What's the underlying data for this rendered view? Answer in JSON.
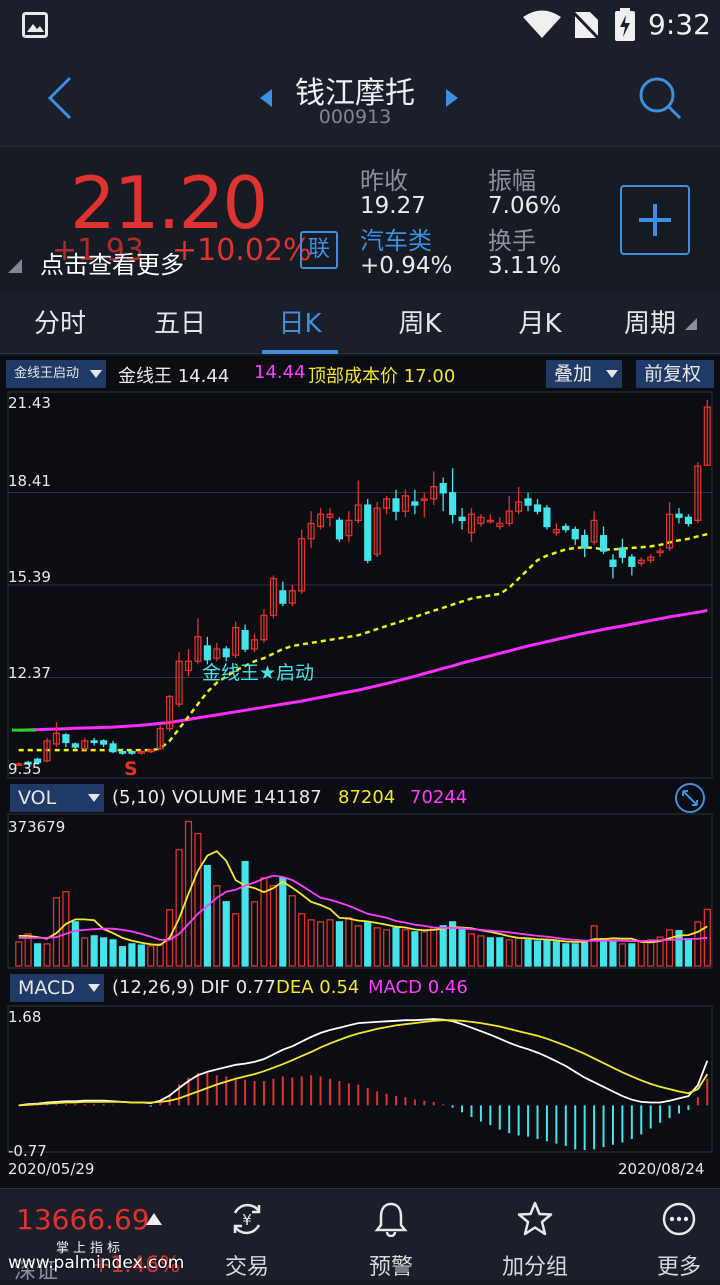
{
  "status": {
    "time": "9:32"
  },
  "header": {
    "title": "钱江摩托",
    "code": "000913"
  },
  "quote": {
    "price": "21.20",
    "change": "+1.93",
    "change_pct": "+10.02%",
    "link_badge": "联",
    "hint": "点击查看更多",
    "prev_close_label": "昨收",
    "prev_close": "19.27",
    "amplitude_label": "振幅",
    "amplitude": "7.06%",
    "sector_label": "汽车类",
    "sector_change": "+0.94%",
    "turnover_label": "换手",
    "turnover": "3.11%",
    "colors": {
      "up": "#e0322e",
      "down": "#43e4ea",
      "accent": "#3d8fe0"
    }
  },
  "tabs": [
    "分时",
    "五日",
    "日K",
    "周K",
    "月K",
    "周期"
  ],
  "active_tab": "日K",
  "indicator_bar": {
    "dropdown": "金线王启动",
    "name": "金线王",
    "value1": "14.44",
    "value2": "14.44",
    "top_cost_label": "顶部成本价",
    "top_cost": "17.00",
    "overlay": "叠加",
    "adjust": "前复权"
  },
  "kline": {
    "y_labels": [
      "21.43",
      "18.41",
      "15.39",
      "12.37",
      "9.35"
    ],
    "annotation": "金线王★启动",
    "signal": "S"
  },
  "vol_bar": {
    "dropdown": "VOL",
    "params": "(5,10)",
    "name": "VOLUME",
    "v": "141187",
    "ma5": "87204",
    "ma10": "70244",
    "max_label": "373679"
  },
  "macd_bar": {
    "dropdown": "MACD",
    "params": "(12,26,9)",
    "dif_label": "DIF",
    "dif": "0.77",
    "dea_label": "DEA",
    "dea": "0.54",
    "macd_label": "MACD",
    "macd": "0.46",
    "max_label": "1.68",
    "min_label": "-0.77"
  },
  "dates": {
    "start": "2020/05/29",
    "end": "2020/08/24"
  },
  "bottom_nav": {
    "index_value": "13666.69",
    "index_sub": "掌上指标",
    "index_name": "深证",
    "index_change": "+1.46%",
    "items": [
      "交易",
      "预警",
      "加分组",
      "更多"
    ]
  },
  "watermark": "www.palmindex.com",
  "chart_data": {
    "type": "candlestick",
    "x_range": [
      "2020/05/29",
      "2020/08/24"
    ],
    "ylim": [
      9.35,
      21.43
    ],
    "candles": [
      [
        9.55,
        9.55,
        9.5,
        9.6
      ],
      [
        9.6,
        9.55,
        9.5,
        9.65
      ],
      [
        9.7,
        9.6,
        9.55,
        9.75
      ],
      [
        9.65,
        10.3,
        9.6,
        10.4
      ],
      [
        10.2,
        10.55,
        10.1,
        10.9
      ],
      [
        10.5,
        10.25,
        10.1,
        10.55
      ],
      [
        10.2,
        10.1,
        10.0,
        10.25
      ],
      [
        10.05,
        10.3,
        10.0,
        10.4
      ],
      [
        10.3,
        10.25,
        10.15,
        10.4
      ],
      [
        10.3,
        10.2,
        10.1,
        10.35
      ],
      [
        10.2,
        9.95,
        9.9,
        10.3
      ],
      [
        9.95,
        9.9,
        9.85,
        10.05
      ],
      [
        9.95,
        9.9,
        9.85,
        10.0
      ],
      [
        9.9,
        9.95,
        9.85,
        10.0
      ],
      [
        9.95,
        10.0,
        9.9,
        10.05
      ],
      [
        10.05,
        10.7,
        10.0,
        10.8
      ],
      [
        10.7,
        11.75,
        10.6,
        11.8
      ],
      [
        11.5,
        12.9,
        11.4,
        13.2
      ],
      [
        12.6,
        12.9,
        12.4,
        13.3
      ],
      [
        12.9,
        13.7,
        12.8,
        14.3
      ],
      [
        13.4,
        12.95,
        12.8,
        13.7
      ],
      [
        13.0,
        13.3,
        12.9,
        13.5
      ],
      [
        13.3,
        13.05,
        12.9,
        13.4
      ],
      [
        13.1,
        14.0,
        13.0,
        14.2
      ],
      [
        13.9,
        13.3,
        13.2,
        14.1
      ],
      [
        13.3,
        13.6,
        13.2,
        13.8
      ],
      [
        13.6,
        14.4,
        13.5,
        14.6
      ],
      [
        14.4,
        15.6,
        14.3,
        15.7
      ],
      [
        15.2,
        14.8,
        14.7,
        15.5
      ],
      [
        14.8,
        15.2,
        14.7,
        15.4
      ],
      [
        15.2,
        16.9,
        15.1,
        17.2
      ],
      [
        16.9,
        17.4,
        16.6,
        17.8
      ],
      [
        17.3,
        17.7,
        17.2,
        17.9
      ],
      [
        17.6,
        17.7,
        17.3,
        17.9
      ],
      [
        17.5,
        16.9,
        16.8,
        17.6
      ],
      [
        17.0,
        17.5,
        16.8,
        17.8
      ],
      [
        17.5,
        18.0,
        17.4,
        18.8
      ],
      [
        18.0,
        16.2,
        16.1,
        18.2
      ],
      [
        16.4,
        17.9,
        16.3,
        18.1
      ],
      [
        17.9,
        18.2,
        17.7,
        18.3
      ],
      [
        18.2,
        17.8,
        17.5,
        18.5
      ],
      [
        17.8,
        18.3,
        17.6,
        18.5
      ],
      [
        18.1,
        18.0,
        17.7,
        18.5
      ],
      [
        18.2,
        18.2,
        17.6,
        18.4
      ],
      [
        18.2,
        18.6,
        18.0,
        19.1
      ],
      [
        18.7,
        18.4,
        17.8,
        18.9
      ],
      [
        18.4,
        17.7,
        17.4,
        19.2
      ],
      [
        17.6,
        17.5,
        17.2,
        17.9
      ],
      [
        17.1,
        17.7,
        16.8,
        17.9
      ],
      [
        17.4,
        17.6,
        17.3,
        17.7
      ],
      [
        17.5,
        17.5,
        17.4,
        17.7
      ],
      [
        17.3,
        17.4,
        17.2,
        17.6
      ],
      [
        17.4,
        17.8,
        17.3,
        18.3
      ],
      [
        17.8,
        18.1,
        17.7,
        18.6
      ],
      [
        18.2,
        18.0,
        17.8,
        18.4
      ],
      [
        18.0,
        17.8,
        17.7,
        18.2
      ],
      [
        17.9,
        17.3,
        17.2,
        18.0
      ],
      [
        17.1,
        17.2,
        17.0,
        17.4
      ],
      [
        17.3,
        17.2,
        17.1,
        17.4
      ],
      [
        17.2,
        16.9,
        16.7,
        17.3
      ],
      [
        17.0,
        16.6,
        16.3,
        17.2
      ],
      [
        16.8,
        17.5,
        16.7,
        17.8
      ],
      [
        17.0,
        16.5,
        16.4,
        17.3
      ],
      [
        16.2,
        16.0,
        15.6,
        16.4
      ],
      [
        16.6,
        16.3,
        16.1,
        16.9
      ],
      [
        16.3,
        16.0,
        15.7,
        16.4
      ],
      [
        16.1,
        16.2,
        16.0,
        16.3
      ],
      [
        16.2,
        16.3,
        16.1,
        16.4
      ],
      [
        16.5,
        16.5,
        16.3,
        16.6
      ],
      [
        16.6,
        17.7,
        16.5,
        18.1
      ],
      [
        17.7,
        17.6,
        17.4,
        17.9
      ],
      [
        17.6,
        17.4,
        17.3,
        17.7
      ],
      [
        17.5,
        19.27,
        17.4,
        19.4
      ],
      [
        19.3,
        21.2,
        19.3,
        21.43
      ]
    ],
    "yellow_line": [
      10.0,
      10.0,
      10.0,
      10.0,
      10.0,
      10.0,
      10.0,
      10.0,
      10.0,
      10.0,
      10.0,
      10.0,
      10.0,
      10.0,
      10.0,
      10.05,
      10.3,
      10.7,
      11.1,
      11.5,
      11.9,
      12.2,
      12.4,
      12.6,
      12.75,
      12.9,
      13.0,
      13.15,
      13.3,
      13.4,
      13.45,
      13.5,
      13.55,
      13.6,
      13.65,
      13.7,
      13.75,
      13.85,
      13.95,
      14.05,
      14.15,
      14.25,
      14.35,
      14.45,
      14.55,
      14.65,
      14.75,
      14.85,
      14.95,
      15.0,
      15.05,
      15.1,
      15.3,
      15.6,
      15.9,
      16.2,
      16.35,
      16.45,
      16.55,
      16.6,
      16.62,
      16.6,
      16.55,
      16.55,
      16.58,
      16.6,
      16.62,
      16.65,
      16.7,
      16.78,
      16.85,
      16.9,
      16.98,
      17.05
    ],
    "magenta_line": [
      10.65,
      10.66,
      10.67,
      10.68,
      10.69,
      10.7,
      10.71,
      10.72,
      10.73,
      10.74,
      10.75,
      10.77,
      10.79,
      10.81,
      10.84,
      10.87,
      10.9,
      10.95,
      11.0,
      11.05,
      11.1,
      11.15,
      11.2,
      11.25,
      11.3,
      11.35,
      11.4,
      11.45,
      11.5,
      11.55,
      11.6,
      11.66,
      11.72,
      11.78,
      11.84,
      11.9,
      11.96,
      12.03,
      12.1,
      12.17,
      12.25,
      12.33,
      12.41,
      12.5,
      12.58,
      12.67,
      12.75,
      12.84,
      12.92,
      13.0,
      13.08,
      13.16,
      13.24,
      13.32,
      13.4,
      13.47,
      13.54,
      13.61,
      13.68,
      13.75,
      13.82,
      13.88,
      13.94,
      14.0,
      14.05,
      14.11,
      14.17,
      14.23,
      14.29,
      14.35,
      14.4,
      14.45,
      14.5,
      14.56
    ],
    "volume": {
      "max": 373679,
      "values": [
        60000,
        80000,
        55000,
        55000,
        170000,
        185000,
        110000,
        70000,
        75000,
        70000,
        65000,
        48000,
        55000,
        52000,
        50000,
        55000,
        140000,
        290000,
        360000,
        330000,
        250000,
        200000,
        160000,
        130000,
        260000,
        160000,
        220000,
        200000,
        220000,
        175000,
        130000,
        115000,
        110000,
        115000,
        110000,
        120000,
        100000,
        110000,
        95000,
        90000,
        95000,
        90000,
        85000,
        85000,
        95000,
        100000,
        110000,
        90000,
        80000,
        75000,
        70000,
        70000,
        65000,
        70000,
        65000,
        62000,
        65000,
        60000,
        55000,
        55000,
        58000,
        100000,
        68000,
        62000,
        55000,
        55000,
        60000,
        65000,
        72000,
        90000,
        88000,
        68000,
        110000,
        141187
      ],
      "up": [
        1,
        1,
        0,
        1,
        1,
        1,
        0,
        1,
        0,
        0,
        0,
        0,
        0,
        0,
        1,
        1,
        1,
        1,
        1,
        1,
        0,
        1,
        0,
        1,
        0,
        1,
        1,
        1,
        0,
        1,
        1,
        1,
        1,
        1,
        0,
        1,
        1,
        0,
        1,
        1,
        0,
        1,
        0,
        1,
        1,
        0,
        0,
        0,
        1,
        1,
        0,
        0,
        1,
        1,
        0,
        0,
        0,
        0,
        0,
        0,
        0,
        1,
        0,
        0,
        1,
        0,
        1,
        1,
        1,
        1,
        0,
        0,
        1,
        1
      ],
      "ma5": [
        75000,
        75000,
        72000,
        68000,
        82000,
        105000,
        116000,
        116000,
        114000,
        92000,
        82000,
        70000,
        63000,
        58000,
        54000,
        52000,
        70000,
        118000,
        180000,
        237000,
        275000,
        286000,
        262000,
        214000,
        200000,
        194000,
        184000,
        194000,
        210000,
        195000,
        178000,
        160000,
        152000,
        142000,
        120000,
        118000,
        113000,
        111000,
        107000,
        103000,
        98000,
        96000,
        91000,
        89000,
        90000,
        93000,
        97000,
        96000,
        94000,
        89000,
        85000,
        80000,
        74000,
        70000,
        69000,
        67000,
        66000,
        64000,
        61000,
        60000,
        60000,
        67000,
        67000,
        69000,
        68000,
        68000,
        60000,
        59000,
        62000,
        69000,
        76000,
        77000,
        85000,
        99000
      ],
      "ma10": [
        70000,
        70000,
        70000,
        70000,
        72000,
        80000,
        88000,
        90000,
        92000,
        93000,
        93000,
        90000,
        86000,
        80000,
        73000,
        65000,
        65000,
        80000,
        105000,
        130000,
        150000,
        170000,
        185000,
        190000,
        200000,
        208000,
        218000,
        225000,
        222000,
        214000,
        200000,
        185000,
        170000,
        165000,
        158000,
        150000,
        140000,
        130000,
        125000,
        120000,
        112000,
        108000,
        103000,
        100000,
        96000,
        95000,
        95000,
        94000,
        92000,
        90000,
        88000,
        86000,
        84000,
        81000,
        78000,
        75000,
        73000,
        70000,
        67000,
        65000,
        63000,
        63000,
        63000,
        63000,
        63000,
        62000,
        62000,
        63000,
        64000,
        65000,
        66000,
        67000,
        68000,
        70244
      ]
    },
    "macd": {
      "ylim": [
        -0.77,
        1.68
      ],
      "dif": [
        0.0,
        0.02,
        0.03,
        0.05,
        0.06,
        0.07,
        0.07,
        0.08,
        0.08,
        0.08,
        0.07,
        0.06,
        0.05,
        0.05,
        0.04,
        0.08,
        0.17,
        0.3,
        0.42,
        0.52,
        0.58,
        0.62,
        0.66,
        0.7,
        0.72,
        0.75,
        0.8,
        0.88,
        0.96,
        1.02,
        1.1,
        1.18,
        1.25,
        1.3,
        1.34,
        1.38,
        1.42,
        1.43,
        1.44,
        1.45,
        1.46,
        1.47,
        1.47,
        1.48,
        1.49,
        1.48,
        1.45,
        1.4,
        1.34,
        1.28,
        1.22,
        1.15,
        1.08,
        1.02,
        0.97,
        0.91,
        0.84,
        0.76,
        0.68,
        0.58,
        0.48,
        0.4,
        0.32,
        0.24,
        0.16,
        0.1,
        0.06,
        0.05,
        0.05,
        0.08,
        0.12,
        0.16,
        0.35,
        0.77
      ],
      "dea": [
        0.0,
        0.01,
        0.02,
        0.03,
        0.04,
        0.05,
        0.05,
        0.06,
        0.06,
        0.06,
        0.06,
        0.06,
        0.05,
        0.05,
        0.05,
        0.06,
        0.08,
        0.12,
        0.18,
        0.24,
        0.3,
        0.36,
        0.41,
        0.46,
        0.5,
        0.54,
        0.59,
        0.65,
        0.71,
        0.78,
        0.85,
        0.92,
        1.0,
        1.07,
        1.13,
        1.19,
        1.24,
        1.28,
        1.32,
        1.35,
        1.38,
        1.4,
        1.42,
        1.44,
        1.46,
        1.47,
        1.47,
        1.46,
        1.44,
        1.42,
        1.39,
        1.36,
        1.32,
        1.28,
        1.24,
        1.2,
        1.15,
        1.09,
        1.03,
        0.96,
        0.89,
        0.81,
        0.73,
        0.65,
        0.57,
        0.5,
        0.43,
        0.37,
        0.32,
        0.28,
        0.24,
        0.21,
        0.28,
        0.54
      ],
      "hist": [
        0.0,
        0.01,
        0.01,
        0.02,
        0.02,
        0.02,
        0.02,
        0.02,
        0.02,
        0.02,
        0.01,
        0.0,
        0.0,
        0.0,
        -0.02,
        0.04,
        0.18,
        0.36,
        0.48,
        0.56,
        0.56,
        0.52,
        0.5,
        0.48,
        0.44,
        0.42,
        0.42,
        0.46,
        0.5,
        0.48,
        0.5,
        0.52,
        0.5,
        0.46,
        0.42,
        0.38,
        0.36,
        0.3,
        0.24,
        0.2,
        0.16,
        0.14,
        0.1,
        0.08,
        0.06,
        0.02,
        -0.04,
        -0.12,
        -0.2,
        -0.28,
        -0.34,
        -0.42,
        -0.48,
        -0.52,
        -0.54,
        -0.58,
        -0.62,
        -0.66,
        -0.7,
        -0.76,
        -0.77,
        -0.76,
        -0.72,
        -0.68,
        -0.64,
        -0.58,
        -0.5,
        -0.4,
        -0.3,
        -0.22,
        -0.14,
        -0.08,
        0.14,
        0.46
      ]
    }
  }
}
